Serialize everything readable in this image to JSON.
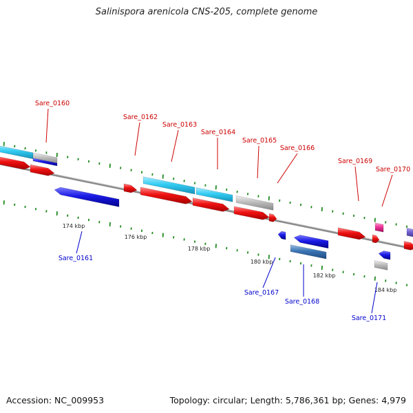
{
  "title": "Salinispora arenicola CNS-205, complete genome",
  "footer": {
    "accession": "Accession: NC_009953",
    "summary": "Topology: circular; Length: 5,786,361 bp; Genes: 4,979"
  },
  "colors": {
    "forward_cds": "#ee1111",
    "reverse_cds": "#1a1ae6",
    "forward_rna": "#33ccf2",
    "reverse_rna": "#3a74b4",
    "other_feature": "#b8b8b8",
    "pseudo": "#ee3399",
    "hypothetical": "#6f5fcf",
    "tick": "#1f8a1f",
    "backbone": "#8a8a8a",
    "forward_label": "#cc0000",
    "reverse_label": "#0000cc"
  },
  "scale_labels": [
    "174 kbp",
    "176 kbp",
    "178 kbp",
    "180 kbp",
    "182 kbp",
    "184 kbp"
  ],
  "genes": [
    {
      "name": "Sare_0160",
      "strand": "+"
    },
    {
      "name": "Sare_0161",
      "strand": "-"
    },
    {
      "name": "Sare_0162",
      "strand": "+"
    },
    {
      "name": "Sare_0163",
      "strand": "+"
    },
    {
      "name": "Sare_0164",
      "strand": "+"
    },
    {
      "name": "Sare_0165",
      "strand": "+"
    },
    {
      "name": "Sare_0166",
      "strand": "+"
    },
    {
      "name": "Sare_0167",
      "strand": "-"
    },
    {
      "name": "Sare_0168",
      "strand": "-"
    },
    {
      "name": "Sare_0169",
      "strand": "+"
    },
    {
      "name": "Sare_0170",
      "strand": "+"
    },
    {
      "name": "Sare_0171",
      "strand": "-"
    }
  ]
}
